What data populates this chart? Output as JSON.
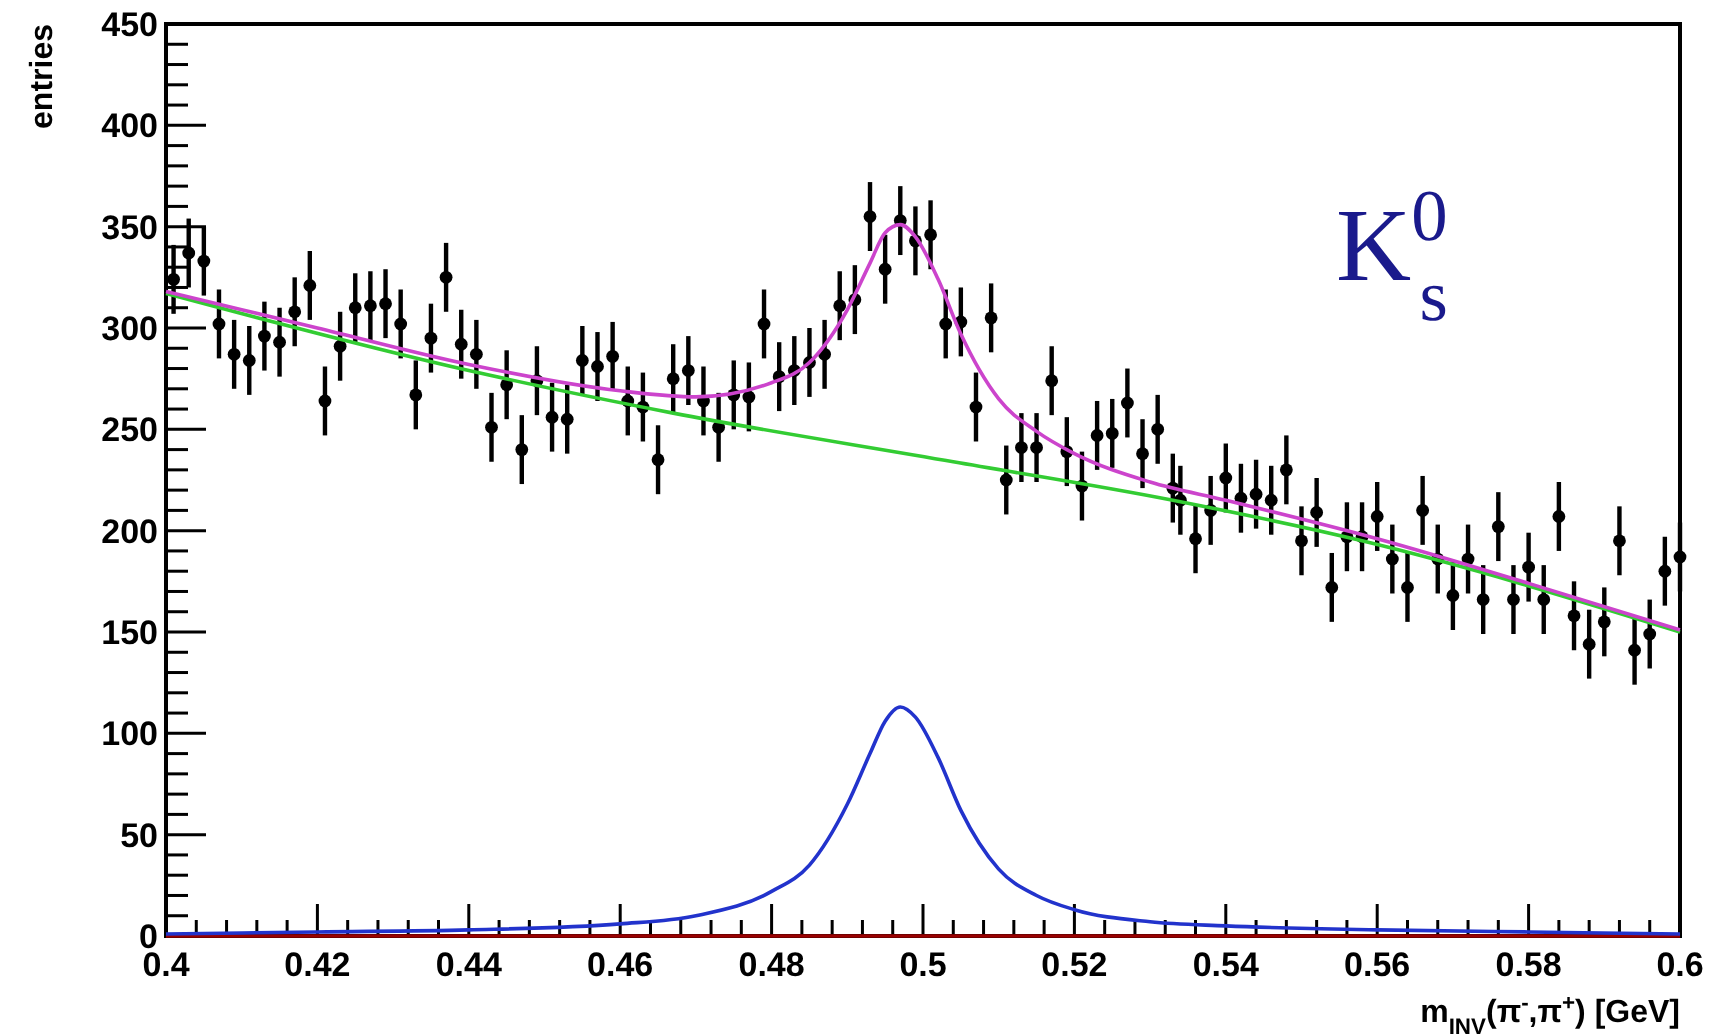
{
  "chart_data": {
    "type": "scatter",
    "xlabel": "m$_{INV}$(π$^{-}$,π$^{+}$) [GeV]",
    "ylabel": "entries",
    "annotations": [
      "K$^{0}$$_{s}$"
    ],
    "xlim": [
      0.4,
      0.6
    ],
    "ylim": [
      0,
      450
    ],
    "xticks": [
      0.4,
      {
        "value": 0.404,
        "label": null
      },
      {
        "value": 0.408,
        "label": null
      },
      {
        "value": 0.412,
        "label": null
      },
      {
        "value": 0.416,
        "label": null
      },
      0.42,
      {
        "value": 0.424,
        "label": null
      },
      {
        "value": 0.428,
        "label": null
      },
      {
        "value": 0.432,
        "label": null
      },
      {
        "value": 0.436,
        "label": null
      },
      0.44,
      {
        "value": 0.444,
        "label": null
      },
      {
        "value": 0.448,
        "label": null
      },
      {
        "value": 0.452,
        "label": null
      },
      {
        "value": 0.456,
        "label": null
      },
      0.46,
      {
        "value": 0.464,
        "label": null
      },
      {
        "value": 0.468,
        "label": null
      },
      {
        "value": 0.472,
        "label": null
      },
      {
        "value": 0.476,
        "label": null
      },
      0.48,
      {
        "value": 0.484,
        "label": null
      },
      {
        "value": 0.488,
        "label": null
      },
      {
        "value": 0.492,
        "label": null
      },
      {
        "value": 0.496,
        "label": null
      },
      0.5,
      {
        "value": 0.504,
        "label": null
      },
      {
        "value": 0.508,
        "label": null
      },
      {
        "value": 0.512,
        "label": null
      },
      {
        "value": 0.516,
        "label": null
      },
      0.52,
      {
        "value": 0.524,
        "label": null
      },
      {
        "value": 0.528,
        "label": null
      },
      {
        "value": 0.532,
        "label": null
      },
      {
        "value": 0.536,
        "label": null
      },
      0.54,
      {
        "value": 0.544,
        "label": null
      },
      {
        "value": 0.548,
        "label": null
      },
      {
        "value": 0.552,
        "label": null
      },
      {
        "value": 0.556,
        "label": null
      },
      0.56,
      {
        "value": 0.564,
        "label": null
      },
      {
        "value": 0.568,
        "label": null
      },
      {
        "value": 0.572,
        "label": null
      },
      {
        "value": 0.576,
        "label": null
      },
      0.58,
      {
        "value": 0.584,
        "label": null
      },
      {
        "value": 0.588,
        "label": null
      },
      {
        "value": 0.592,
        "label": null
      },
      {
        "value": 0.596,
        "label": null
      },
      0.6
    ],
    "yticks": [
      0,
      {
        "value": 10,
        "label": null
      },
      {
        "value": 20,
        "label": null
      },
      {
        "value": 30,
        "label": null
      },
      {
        "value": 40,
        "label": null
      },
      50,
      {
        "value": 60,
        "label": null
      },
      {
        "value": 70,
        "label": null
      },
      {
        "value": 80,
        "label": null
      },
      {
        "value": 90,
        "label": null
      },
      100,
      {
        "value": 110,
        "label": null
      },
      {
        "value": 120,
        "label": null
      },
      {
        "value": 130,
        "label": null
      },
      {
        "value": 140,
        "label": null
      },
      150,
      {
        "value": 160,
        "label": null
      },
      {
        "value": 170,
        "label": null
      },
      {
        "value": 180,
        "label": null
      },
      {
        "value": 190,
        "label": null
      },
      200,
      {
        "value": 210,
        "label": null
      },
      {
        "value": 220,
        "label": null
      },
      {
        "value": 230,
        "label": null
      },
      {
        "value": 240,
        "label": null
      },
      250,
      {
        "value": 260,
        "label": null
      },
      {
        "value": 270,
        "label": null
      },
      {
        "value": 280,
        "label": null
      },
      {
        "value": 290,
        "label": null
      },
      300,
      {
        "value": 310,
        "label": null
      },
      {
        "value": 320,
        "label": null
      },
      {
        "value": 330,
        "label": null
      },
      {
        "value": 340,
        "label": null
      },
      350,
      {
        "value": 360,
        "label": null
      },
      {
        "value": 370,
        "label": null
      },
      {
        "value": 380,
        "label": null
      },
      {
        "value": 390,
        "label": null
      },
      400,
      {
        "value": 410,
        "label": null
      },
      {
        "value": 420,
        "label": null
      },
      {
        "value": 430,
        "label": null
      },
      {
        "value": 440,
        "label": null
      },
      450
    ],
    "grid": false,
    "series": [
      {
        "color": "#000000",
        "marker": "circle",
        "x": [
          0.401,
          0.403,
          0.405,
          0.407,
          0.409,
          0.411,
          0.413,
          0.415,
          0.417,
          0.419,
          0.421,
          0.423,
          0.425,
          0.427,
          0.429,
          0.431,
          0.433,
          0.435,
          0.437,
          0.439,
          0.441,
          0.443,
          0.445,
          0.447,
          0.449,
          0.451,
          0.453,
          0.455,
          0.457,
          0.459,
          0.461,
          0.463,
          0.465,
          0.467,
          0.469,
          0.471,
          0.473,
          0.475,
          0.477,
          0.479,
          0.481,
          0.483,
          0.485,
          0.487,
          0.489,
          0.491,
          0.493,
          0.495,
          0.497,
          0.499,
          0.501,
          0.503,
          0.505,
          0.507,
          0.509,
          0.511,
          0.513,
          0.515,
          0.517,
          0.519,
          0.521,
          0.523,
          0.525,
          0.527,
          0.529,
          0.531,
          0.533,
          0.534,
          0.536,
          0.538,
          0.54,
          0.542,
          0.544,
          0.546,
          0.548,
          0.55,
          0.552,
          0.554,
          0.556,
          0.558,
          0.56,
          0.562,
          0.564,
          0.566,
          0.568,
          0.57,
          0.572,
          0.574,
          0.576,
          0.578,
          0.58,
          0.582,
          0.584,
          0.586,
          0.588,
          0.59,
          0.592,
          0.594,
          0.596,
          0.598,
          0.6
        ],
        "values": [
          324,
          337,
          333,
          302,
          287,
          284,
          296,
          293,
          308,
          321,
          264,
          291,
          310,
          311,
          312,
          302,
          267,
          295,
          325,
          292,
          287,
          251,
          272,
          240,
          274,
          256,
          255,
          284,
          281,
          286,
          264,
          261,
          235,
          275,
          279,
          264,
          251,
          267,
          266,
          302,
          276,
          279,
          283,
          287,
          311,
          314,
          355,
          329,
          353,
          343,
          346,
          302,
          303,
          261,
          305,
          225,
          241,
          241,
          274,
          239,
          222,
          247,
          248,
          263,
          238,
          250,
          221,
          215,
          196,
          210,
          226,
          216,
          218,
          215,
          230,
          195,
          209,
          172,
          197,
          197,
          207,
          186,
          172,
          210,
          186,
          168,
          186,
          166,
          202,
          166,
          182,
          166,
          207,
          158,
          144,
          155,
          195,
          141,
          149,
          180,
          187
        ],
        "errors": [
          17,
          17,
          17,
          17,
          17,
          17,
          17,
          17,
          17,
          17,
          17,
          17,
          17,
          17,
          17,
          17,
          17,
          17,
          17,
          17,
          17,
          17,
          17,
          17,
          17,
          17,
          17,
          17,
          17,
          17,
          17,
          17,
          17,
          17,
          17,
          17,
          17,
          17,
          17,
          17,
          17,
          17,
          17,
          17,
          17,
          17,
          17,
          17,
          17,
          17,
          17,
          17,
          17,
          17,
          17,
          17,
          17,
          17,
          17,
          17,
          17,
          17,
          17,
          17,
          17,
          17,
          17,
          17,
          17,
          17,
          17,
          17,
          17,
          17,
          17,
          17,
          17,
          17,
          17,
          17,
          17,
          17,
          17,
          17,
          17,
          17,
          17,
          17,
          17,
          17,
          17,
          17,
          17,
          17,
          17,
          17,
          17,
          17,
          17,
          17,
          17
        ]
      },
      {
        "type": "line",
        "color": "#33cc33",
        "x": [
          0.4,
          0.44,
          0.467,
          0.504,
          0.533,
          0.558,
          0.6
        ],
        "values": [
          317,
          279,
          258,
          234,
          215,
          195,
          150
        ]
      },
      {
        "type": "line",
        "color": "#cc44cc",
        "x": [
          0.4,
          0.42,
          0.44,
          0.46,
          0.47,
          0.48,
          0.485,
          0.49,
          0.493,
          0.495,
          0.497,
          0.499,
          0.502,
          0.505,
          0.51,
          0.515,
          0.52,
          0.53,
          0.54,
          0.56,
          0.58,
          0.6
        ],
        "values": [
          318,
          300,
          282,
          269,
          266,
          273,
          283,
          309,
          332,
          347,
          351,
          345,
          324,
          297,
          265,
          249,
          238,
          224,
          215,
          196,
          174,
          151
        ]
      },
      {
        "type": "line",
        "color": "#990000",
        "x": [
          0.4,
          0.6
        ],
        "values": [
          0,
          0
        ]
      },
      {
        "type": "line",
        "color": "#2233cc",
        "x": [
          0.4,
          0.42,
          0.44,
          0.46,
          0.47,
          0.48,
          0.485,
          0.49,
          0.493,
          0.495,
          0.497,
          0.499,
          0.502,
          0.505,
          0.51,
          0.515,
          0.52,
          0.53,
          0.54,
          0.56,
          0.58,
          0.6
        ],
        "values": [
          1,
          2,
          3,
          6,
          10,
          22,
          35,
          65,
          90,
          106,
          113,
          108,
          88,
          62,
          33,
          20,
          13,
          7,
          5,
          3,
          2,
          1
        ]
      }
    ]
  }
}
